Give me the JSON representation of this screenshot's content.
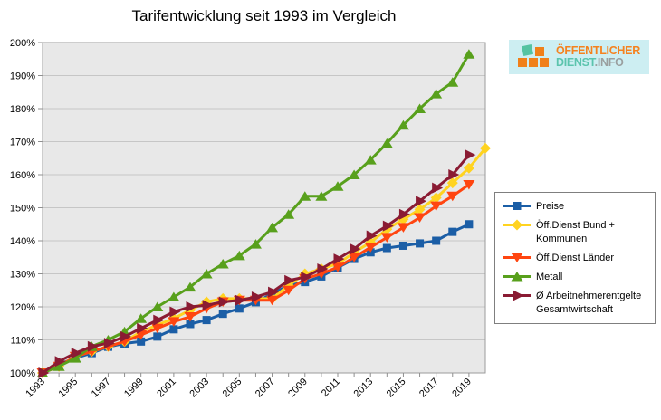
{
  "logo": {
    "line1": "ÖFFENTLICHER",
    "line2_main": "DIENST",
    "line2_suffix": ".INFO"
  },
  "chart_data": {
    "type": "line",
    "title": "Tarifentwicklung seit 1993 im Vergleich",
    "xlabel": "",
    "ylabel": "",
    "grid": true,
    "legend_position": "right",
    "plot_background": "#e8e8e8",
    "gridline_color": "#c6c6c6",
    "border_color": "#9b9b9b",
    "y_axis": {
      "min": 100,
      "max": 200,
      "step": 10,
      "suffix": "%"
    },
    "y_tick_labels": [
      "100%",
      "110%",
      "120%",
      "130%",
      "140%",
      "150%",
      "160%",
      "170%",
      "180%",
      "190%",
      "200%"
    ],
    "x_tick_labels": [
      "1993",
      "1995",
      "1997",
      "1999",
      "2001",
      "2003",
      "2005",
      "2007",
      "2009",
      "2011",
      "2013",
      "2015",
      "2017",
      "2019"
    ],
    "years": [
      1993,
      1994,
      1995,
      1996,
      1997,
      1998,
      1999,
      2000,
      2001,
      2002,
      2003,
      2004,
      2005,
      2006,
      2007,
      2008,
      2009,
      2010,
      2011,
      2012,
      2013,
      2014,
      2015,
      2016,
      2017,
      2018,
      2019,
      2020
    ],
    "series": [
      {
        "id": "preise",
        "name": "Preise",
        "legend_label": "Preise",
        "color": "#1b5ea6",
        "marker": "square",
        "values": [
          100,
          102.7,
          104.5,
          106,
          107.9,
          108.9,
          109.5,
          111,
          113.2,
          114.8,
          116,
          117.9,
          119.5,
          121.4,
          124,
          126.5,
          127.5,
          129.2,
          131.9,
          134.5,
          136.5,
          137.8,
          138.5,
          139.2,
          140,
          142.7,
          145,
          null
        ]
      },
      {
        "id": "bund-kommunen",
        "name": "Öff.Dienst Bund + Kommunen",
        "legend_label": "Öff.Dienst Bund +\nKommunen",
        "color": "#ffd320",
        "marker": "diamond",
        "values": [
          100,
          102,
          105,
          106.5,
          108,
          109.5,
          112.5,
          114.5,
          116.5,
          119,
          121.5,
          122.5,
          122.5,
          122.5,
          122.5,
          126.5,
          130,
          131.5,
          133,
          136.5,
          139.5,
          143.5,
          146.5,
          149.5,
          153,
          157.5,
          162,
          168
        ]
      },
      {
        "id": "laender",
        "name": "Öff.Dienst Länder",
        "legend_label": "Öff.Dienst Länder",
        "color": "#ff4510",
        "marker": "triangle-down",
        "values": [
          100,
          102,
          105,
          106.5,
          108,
          109.5,
          111.5,
          113.5,
          115.5,
          117,
          119.5,
          121.5,
          122,
          122,
          122,
          125,
          128.5,
          130,
          132,
          135,
          138,
          141,
          144,
          147,
          150.5,
          153.5,
          157,
          null
        ]
      },
      {
        "id": "metall",
        "name": "Metall",
        "legend_label": "Metall",
        "color": "#58a01c",
        "marker": "triangle-up",
        "values": [
          100,
          102,
          104.5,
          108,
          110,
          112.5,
          116.5,
          120,
          123,
          126,
          130,
          133,
          135.5,
          139,
          144,
          148,
          153.5,
          153.5,
          156.5,
          160,
          164.5,
          169.5,
          175,
          180,
          184.5,
          188,
          196.5,
          null
        ]
      },
      {
        "id": "arbeitnehmerentgelte",
        "name": "Ø Arbeitnehmerentgelte Gesamtwirtschaft",
        "legend_label": "Ø Arbeitnehmerentgelte\nGesamtwirtschaft",
        "color": "#8a1b33",
        "marker": "triangle-right",
        "values": [
          100,
          103.5,
          106,
          108,
          109,
          111,
          113.5,
          116,
          118.5,
          120,
          120.5,
          121.5,
          122,
          123,
          124.5,
          128,
          129,
          131.5,
          134.5,
          137.5,
          141.5,
          144.5,
          148,
          152,
          156,
          160,
          166,
          null
        ]
      }
    ]
  }
}
